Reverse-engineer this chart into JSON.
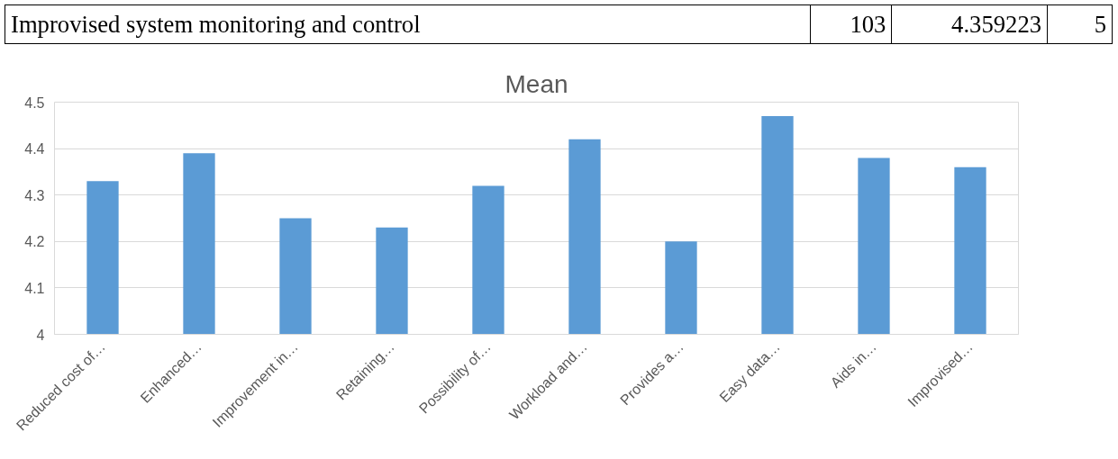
{
  "chart_data": {
    "type": "bar",
    "title": "Mean",
    "categories": [
      "Reduced cost of…",
      "Enhanced…",
      "Improvement in…",
      "Retaining…",
      "Possibility of…",
      "Workload and…",
      "Provides a…",
      "Easy data…",
      "Aids in…",
      "Improvised…"
    ],
    "values": [
      4.33,
      4.39,
      4.25,
      4.23,
      4.32,
      4.42,
      4.2,
      4.47,
      4.38,
      4.36
    ],
    "color": "#5b9bd5",
    "ylim": [
      4,
      4.5
    ],
    "yticks": [
      4,
      4.1,
      4.2,
      4.3,
      4.4,
      4.5
    ],
    "grid": "y",
    "annotations": [
      "Improvised system monitoring and control",
      "103",
      "4.359223",
      "5"
    ]
  }
}
